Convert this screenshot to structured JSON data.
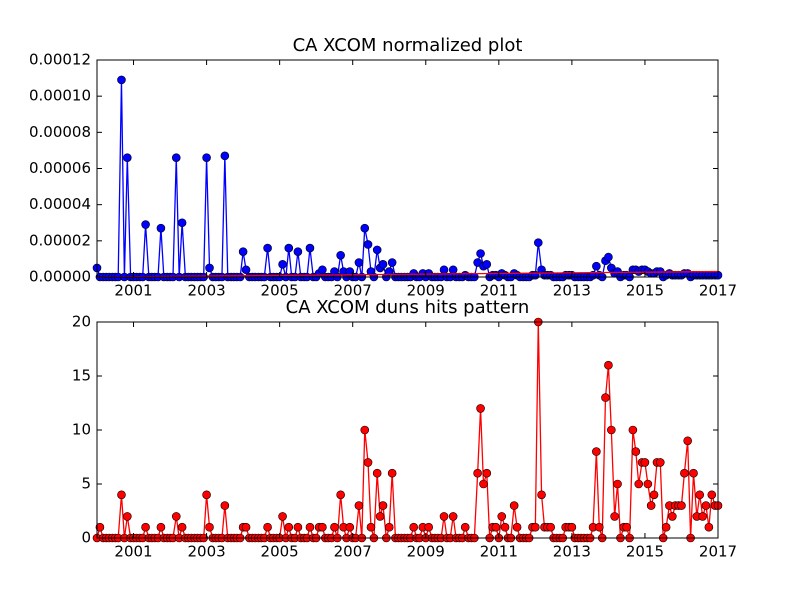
{
  "chart_data": [
    {
      "type": "line",
      "title": "CA XCOM normalized plot",
      "x": [
        2000,
        2000.08,
        2000.17,
        2000.25,
        2000.33,
        2000.42,
        2000.5,
        2000.58,
        2000.67,
        2000.75,
        2000.83,
        2000.92,
        2001,
        2001.08,
        2001.17,
        2001.25,
        2001.33,
        2001.42,
        2001.5,
        2001.58,
        2001.67,
        2001.75,
        2001.83,
        2001.92,
        2002,
        2002.08,
        2002.17,
        2002.25,
        2002.33,
        2002.42,
        2002.5,
        2002.58,
        2002.67,
        2002.75,
        2002.83,
        2002.92,
        2003,
        2003.08,
        2003.17,
        2003.25,
        2003.33,
        2003.42,
        2003.5,
        2003.58,
        2003.67,
        2003.75,
        2003.83,
        2003.92,
        2004,
        2004.08,
        2004.17,
        2004.25,
        2004.33,
        2004.42,
        2004.5,
        2004.58,
        2004.67,
        2004.75,
        2004.83,
        2004.92,
        2005,
        2005.08,
        2005.17,
        2005.25,
        2005.33,
        2005.42,
        2005.5,
        2005.58,
        2005.67,
        2005.75,
        2005.83,
        2005.92,
        2006,
        2006.08,
        2006.17,
        2006.25,
        2006.33,
        2006.42,
        2006.5,
        2006.58,
        2006.67,
        2006.75,
        2006.83,
        2006.92,
        2007,
        2007.08,
        2007.17,
        2007.25,
        2007.33,
        2007.42,
        2007.5,
        2007.58,
        2007.67,
        2007.75,
        2007.83,
        2007.92,
        2008,
        2008.08,
        2008.17,
        2008.25,
        2008.33,
        2008.42,
        2008.5,
        2008.58,
        2008.67,
        2008.75,
        2008.83,
        2008.92,
        2009,
        2009.08,
        2009.17,
        2009.25,
        2009.33,
        2009.42,
        2009.5,
        2009.58,
        2009.67,
        2009.75,
        2009.83,
        2009.92,
        2010,
        2010.08,
        2010.17,
        2010.25,
        2010.33,
        2010.42,
        2010.5,
        2010.58,
        2010.67,
        2010.75,
        2010.83,
        2010.92,
        2011,
        2011.08,
        2011.17,
        2011.25,
        2011.33,
        2011.42,
        2011.5,
        2011.58,
        2011.67,
        2011.75,
        2011.83,
        2011.92,
        2012,
        2012.08,
        2012.17,
        2012.25,
        2012.33,
        2012.42,
        2012.5,
        2012.58,
        2012.67,
        2012.75,
        2012.83,
        2012.92,
        2013,
        2013.08,
        2013.17,
        2013.25,
        2013.33,
        2013.42,
        2013.5,
        2013.58,
        2013.67,
        2013.75,
        2013.83,
        2013.92,
        2014,
        2014.08,
        2014.17,
        2014.25,
        2014.33,
        2014.42,
        2014.5,
        2014.58,
        2014.67,
        2014.75,
        2014.83,
        2014.92,
        2015,
        2015.08,
        2015.17,
        2015.25,
        2015.33,
        2015.42,
        2015.5,
        2015.58,
        2015.67,
        2015.75,
        2015.83,
        2015.92,
        2016,
        2016.08,
        2016.17,
        2016.25,
        2016.33,
        2016.42,
        2016.5,
        2016.58,
        2016.67,
        2016.75,
        2016.83,
        2016.92,
        2017
      ],
      "series": [
        {
          "color": "#0000ff",
          "markers": true,
          "values": [
            5e-06,
            0,
            0,
            0,
            0,
            0,
            0,
            0,
            0.000109,
            0,
            6.6e-05,
            0,
            0,
            0,
            0,
            0,
            2.9e-05,
            0,
            0,
            0,
            0,
            2.7e-05,
            0,
            0,
            0,
            0,
            6.6e-05,
            0,
            3e-05,
            0,
            0,
            0,
            0,
            0,
            0,
            0,
            6.6e-05,
            5e-06,
            0,
            0,
            0,
            0,
            6.7e-05,
            0,
            0,
            0,
            0,
            0,
            1.4e-05,
            4e-06,
            0,
            0,
            0,
            0,
            0,
            0,
            1.6e-05,
            0,
            0,
            0,
            0,
            7e-06,
            0,
            1.6e-05,
            0,
            0,
            1.4e-05,
            0,
            0,
            0,
            1.6e-05,
            0,
            0,
            2e-06,
            4e-06,
            0,
            0,
            0,
            3e-06,
            0,
            1.2e-05,
            3e-06,
            0,
            3e-06,
            0,
            0,
            8e-06,
            0,
            2.7e-05,
            1.8e-05,
            3e-06,
            0,
            1.5e-05,
            5e-06,
            7e-06,
            0,
            3e-06,
            8e-06,
            0,
            0,
            0,
            0,
            0,
            0,
            2e-06,
            0,
            0,
            2e-06,
            0,
            2e-06,
            0,
            0,
            0,
            0,
            4e-06,
            0,
            0,
            4e-06,
            0,
            0,
            0,
            1e-06,
            0,
            0,
            0,
            8e-06,
            1.3e-05,
            6e-06,
            7e-06,
            0,
            1e-06,
            1e-06,
            0,
            2e-06,
            1e-06,
            0,
            0,
            2e-06,
            1e-06,
            0,
            0,
            0,
            0,
            1e-06,
            1e-06,
            1.9e-05,
            4e-06,
            1e-06,
            1e-06,
            1e-06,
            0,
            0,
            0,
            0,
            1e-06,
            1e-06,
            1e-06,
            0,
            0,
            0,
            0,
            0,
            0,
            1e-06,
            6e-06,
            1e-06,
            0,
            9e-06,
            1.1e-05,
            5e-06,
            2e-06,
            3e-06,
            0,
            1e-06,
            1e-06,
            0,
            4e-06,
            4e-06,
            3e-06,
            4e-06,
            4e-06,
            3e-06,
            2e-06,
            2e-06,
            3e-06,
            3e-06,
            0,
            1e-06,
            2e-06,
            1e-06,
            1e-06,
            1e-06,
            1e-06,
            2e-06,
            2e-06,
            0,
            1e-06,
            1e-06,
            1e-06,
            1e-06,
            1e-06,
            1e-06,
            1e-06,
            1e-06,
            1e-06
          ]
        },
        {
          "color": "#ff0000",
          "markers": false,
          "x": [
            2000,
            2017
          ],
          "values": [
            0,
            3e-06
          ]
        }
      ],
      "xlim": [
        2000,
        2017
      ],
      "xticks": [
        2001,
        2003,
        2005,
        2007,
        2009,
        2011,
        2013,
        2015,
        2017
      ],
      "ylim": [
        0,
        0.00012
      ],
      "yticks": [
        {
          "value": 0,
          "label": "0.00000"
        },
        {
          "value": 2e-05,
          "label": "0.00002"
        },
        {
          "value": 4e-05,
          "label": "0.00004"
        },
        {
          "value": 6e-05,
          "label": "0.00006"
        },
        {
          "value": 8e-05,
          "label": "0.00008"
        },
        {
          "value": 0.0001,
          "label": "0.00010"
        },
        {
          "value": 0.00012,
          "label": "0.00012"
        }
      ]
    },
    {
      "type": "line",
      "title": "CA XCOM duns hits pattern",
      "x": [
        2000,
        2000.08,
        2000.17,
        2000.25,
        2000.33,
        2000.42,
        2000.5,
        2000.58,
        2000.67,
        2000.75,
        2000.83,
        2000.92,
        2001,
        2001.08,
        2001.17,
        2001.25,
        2001.33,
        2001.42,
        2001.5,
        2001.58,
        2001.67,
        2001.75,
        2001.83,
        2001.92,
        2002,
        2002.08,
        2002.17,
        2002.25,
        2002.33,
        2002.42,
        2002.5,
        2002.58,
        2002.67,
        2002.75,
        2002.83,
        2002.92,
        2003,
        2003.08,
        2003.17,
        2003.25,
        2003.33,
        2003.42,
        2003.5,
        2003.58,
        2003.67,
        2003.75,
        2003.83,
        2003.92,
        2004,
        2004.08,
        2004.17,
        2004.25,
        2004.33,
        2004.42,
        2004.5,
        2004.58,
        2004.67,
        2004.75,
        2004.83,
        2004.92,
        2005,
        2005.08,
        2005.17,
        2005.25,
        2005.33,
        2005.42,
        2005.5,
        2005.58,
        2005.67,
        2005.75,
        2005.83,
        2005.92,
        2006,
        2006.08,
        2006.17,
        2006.25,
        2006.33,
        2006.42,
        2006.5,
        2006.58,
        2006.67,
        2006.75,
        2006.83,
        2006.92,
        2007,
        2007.08,
        2007.17,
        2007.25,
        2007.33,
        2007.42,
        2007.5,
        2007.58,
        2007.67,
        2007.75,
        2007.83,
        2007.92,
        2008,
        2008.08,
        2008.17,
        2008.25,
        2008.33,
        2008.42,
        2008.5,
        2008.58,
        2008.67,
        2008.75,
        2008.83,
        2008.92,
        2009,
        2009.08,
        2009.17,
        2009.25,
        2009.33,
        2009.42,
        2009.5,
        2009.58,
        2009.67,
        2009.75,
        2009.83,
        2009.92,
        2010,
        2010.08,
        2010.17,
        2010.25,
        2010.33,
        2010.42,
        2010.5,
        2010.58,
        2010.67,
        2010.75,
        2010.83,
        2010.92,
        2011,
        2011.08,
        2011.17,
        2011.25,
        2011.33,
        2011.42,
        2011.5,
        2011.58,
        2011.67,
        2011.75,
        2011.83,
        2011.92,
        2012,
        2012.08,
        2012.17,
        2012.25,
        2012.33,
        2012.42,
        2012.5,
        2012.58,
        2012.67,
        2012.75,
        2012.83,
        2012.92,
        2013,
        2013.08,
        2013.17,
        2013.25,
        2013.33,
        2013.42,
        2013.5,
        2013.58,
        2013.67,
        2013.75,
        2013.83,
        2013.92,
        2014,
        2014.08,
        2014.17,
        2014.25,
        2014.33,
        2014.42,
        2014.5,
        2014.58,
        2014.67,
        2014.75,
        2014.83,
        2014.92,
        2015,
        2015.08,
        2015.17,
        2015.25,
        2015.33,
        2015.42,
        2015.5,
        2015.58,
        2015.67,
        2015.75,
        2015.83,
        2015.92,
        2016,
        2016.08,
        2016.17,
        2016.25,
        2016.33,
        2016.42,
        2016.5,
        2016.58,
        2016.67,
        2016.75,
        2016.83,
        2016.92,
        2017
      ],
      "series": [
        {
          "color": "#ff0000",
          "markers": true,
          "values": [
            0,
            1,
            0,
            0,
            0,
            0,
            0,
            0,
            4,
            0,
            2,
            0,
            0,
            0,
            0,
            0,
            1,
            0,
            0,
            0,
            0,
            1,
            0,
            0,
            0,
            0,
            2,
            0,
            1,
            0,
            0,
            0,
            0,
            0,
            0,
            0,
            4,
            1,
            0,
            0,
            0,
            0,
            3,
            0,
            0,
            0,
            0,
            0,
            1,
            1,
            0,
            0,
            0,
            0,
            0,
            0,
            1,
            0,
            0,
            0,
            0,
            2,
            0,
            1,
            0,
            0,
            1,
            0,
            0,
            0,
            1,
            0,
            0,
            1,
            1,
            0,
            0,
            0,
            1,
            0,
            4,
            1,
            0,
            1,
            0,
            0,
            3,
            0,
            10,
            7,
            1,
            0,
            6,
            2,
            3,
            0,
            1,
            6,
            0,
            0,
            0,
            0,
            0,
            0,
            1,
            0,
            0,
            1,
            0,
            1,
            0,
            0,
            0,
            0,
            2,
            0,
            0,
            2,
            0,
            0,
            0,
            1,
            0,
            0,
            0,
            6,
            12,
            5,
            6,
            0,
            1,
            1,
            0,
            2,
            1,
            0,
            0,
            3,
            1,
            0,
            0,
            0,
            0,
            1,
            1,
            20,
            4,
            1,
            1,
            1,
            0,
            0,
            0,
            0,
            1,
            1,
            1,
            0,
            0,
            0,
            0,
            0,
            0,
            1,
            8,
            1,
            0,
            13,
            16,
            10,
            2,
            5,
            0,
            1,
            1,
            0,
            10,
            8,
            5,
            7,
            7,
            5,
            3,
            4,
            7,
            7,
            0,
            1,
            3,
            2,
            3,
            3,
            3,
            6,
            9,
            0,
            6,
            2,
            4,
            2,
            3,
            1,
            4,
            3,
            3
          ]
        }
      ],
      "xlim": [
        2000,
        2017
      ],
      "xticks": [
        2001,
        2003,
        2005,
        2007,
        2009,
        2011,
        2013,
        2015,
        2017
      ],
      "ylim": [
        0,
        20
      ],
      "yticks": [
        0,
        5,
        10,
        15,
        20
      ]
    }
  ]
}
